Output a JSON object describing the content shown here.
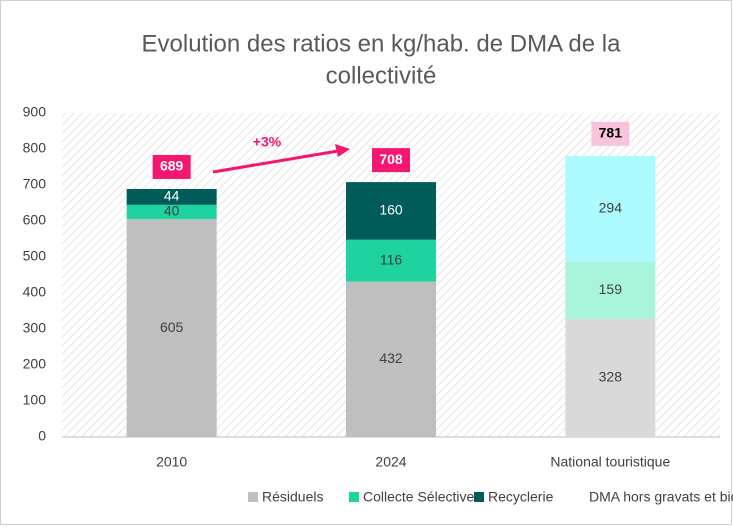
{
  "chart_data": {
    "type": "stacked_bar",
    "title": [
      "Evolution des ratios en kg/hab. de DMA de la",
      "collectivité"
    ],
    "categories": [
      "2010",
      "2024",
      "National touristique"
    ],
    "series": [
      {
        "name": "Résiduels",
        "color": "#bfbfbf",
        "colors": [
          "#bfbfbf",
          "#bfbfbf",
          "#d9d9d9"
        ],
        "values": [
          605,
          432,
          328
        ]
      },
      {
        "name": "Collecte Sélective",
        "color": "#1ed3a0",
        "colors": [
          "#1ed3a0",
          "#1ed3a0",
          "#a9f5dc"
        ],
        "values": [
          40,
          116,
          159
        ]
      },
      {
        "name": "Recyclerie",
        "color": "#005c58",
        "colors": [
          "#005c58",
          "#005c58",
          "#aefbff"
        ],
        "values": [
          44,
          160,
          294
        ]
      }
    ],
    "totals": [
      689,
      708,
      781
    ],
    "total_colors": [
      "#f5166f",
      "#f5166f",
      "#f8c4dc"
    ],
    "annotations": [
      "+3%"
    ],
    "legend_note": "DMA hors gravats et biodéchets compostés",
    "ylim": [
      0,
      900
    ],
    "yticks": [
      0,
      100,
      200,
      300,
      400,
      500,
      600,
      700,
      800,
      900
    ],
    "grid": false,
    "legend": "bottom"
  }
}
